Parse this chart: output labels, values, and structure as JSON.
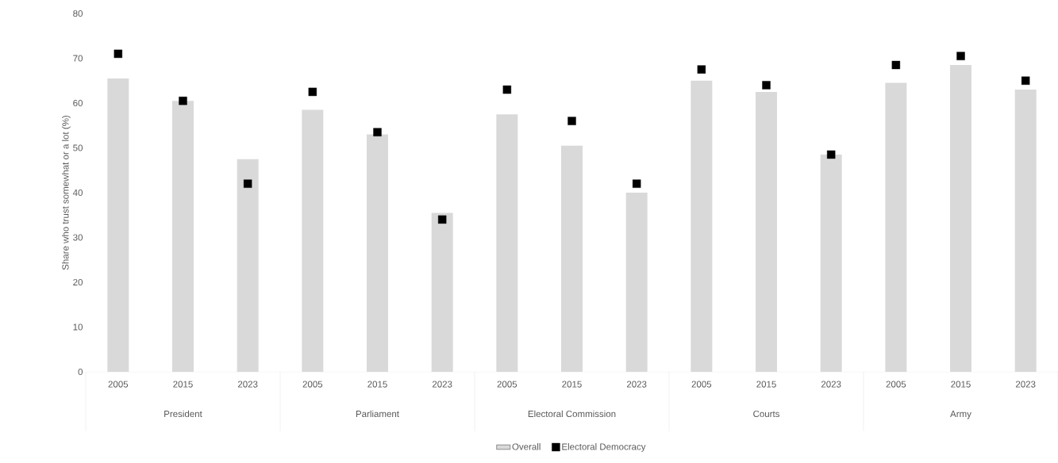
{
  "chart_data": {
    "type": "bar",
    "ylabel": "Share who trust somewhat or a lot (%)",
    "categories": [
      "2005",
      "2015",
      "2023",
      "2005",
      "2015",
      "2023",
      "2005",
      "2015",
      "2023",
      "2005",
      "2015",
      "2023",
      "2005",
      "2015",
      "2023"
    ],
    "series": [
      {
        "name": "Overall",
        "color": "#d9d9d9",
        "values": [
          65.5,
          60.5,
          47.5,
          58.5,
          53,
          35.5,
          57.5,
          50.5,
          40,
          65,
          62.5,
          48.5,
          64.5,
          68.5,
          63
        ]
      },
      {
        "name": "Electoral Democracy",
        "type": "scatter",
        "marker": "square",
        "color": "#000000",
        "values": [
          71,
          60.5,
          42,
          62.5,
          53.5,
          34,
          63,
          56,
          42,
          67.5,
          64,
          48.5,
          68.5,
          70.5,
          65
        ]
      }
    ],
    "annotations": [
      "President",
      "Parliament",
      "Electoral Commission",
      "Courts",
      "Army"
    ],
    "ylim": [
      0,
      80
    ],
    "yticks": [
      0,
      10,
      20,
      30,
      40,
      50,
      60,
      70,
      80
    ],
    "legend": "bottom"
  }
}
